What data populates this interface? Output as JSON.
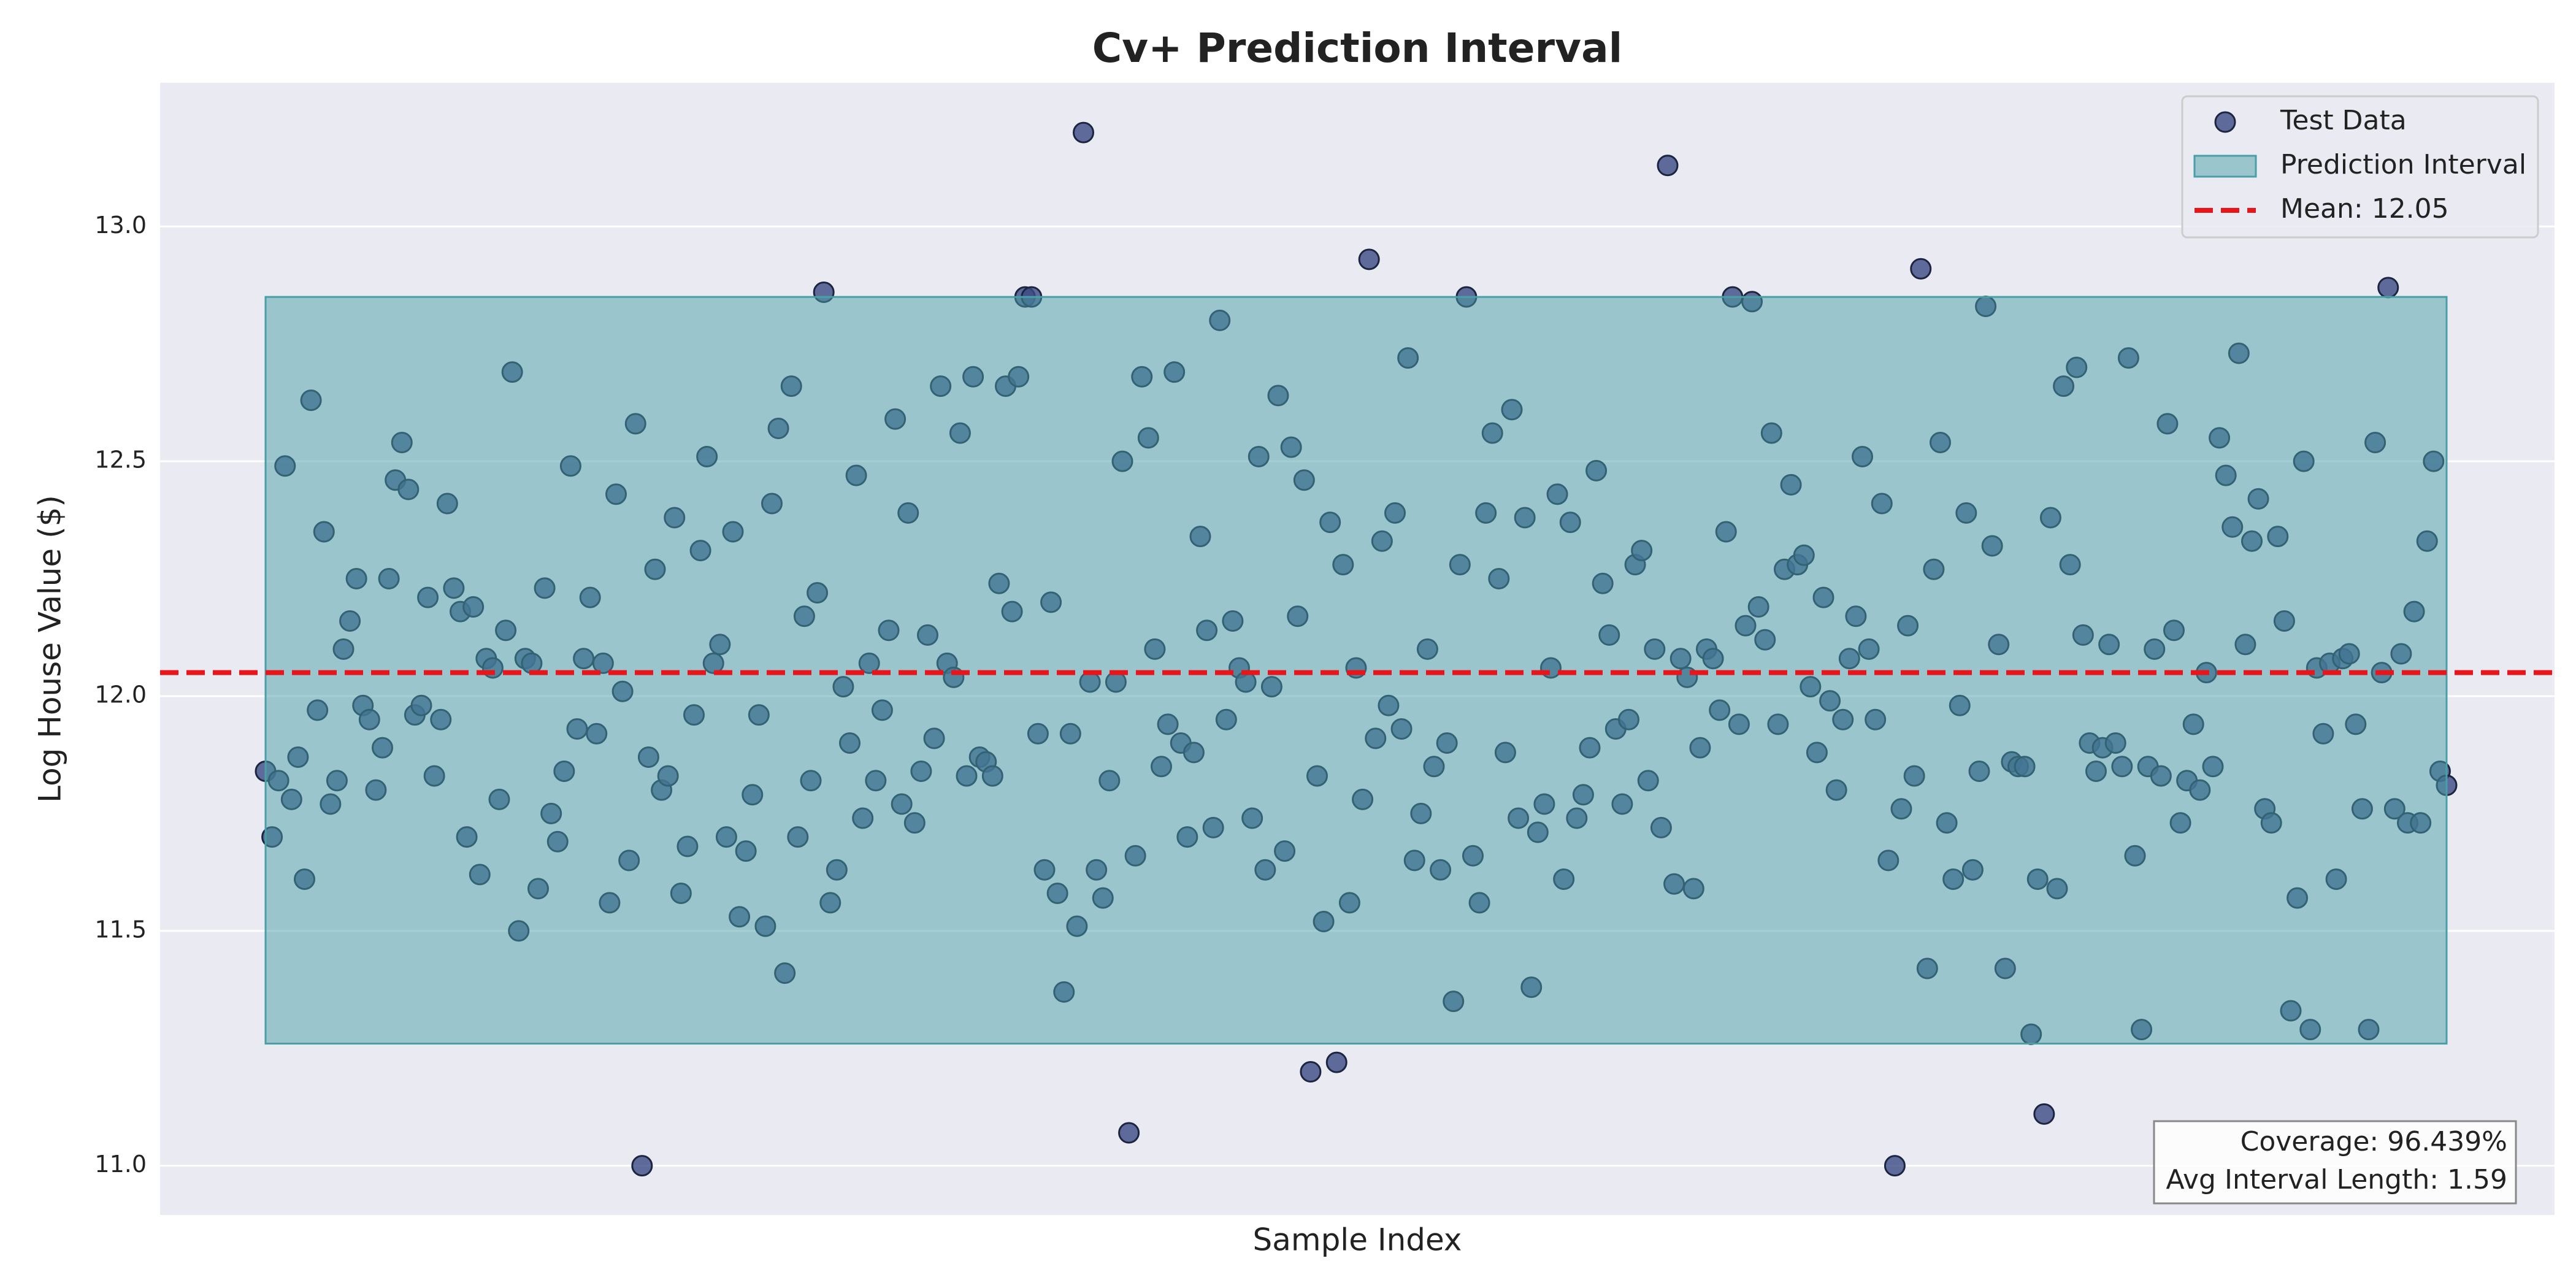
{
  "chart_data": {
    "type": "scatter",
    "title": "Cv+ Prediction Interval",
    "x_label": "Sample Index",
    "y_label": "Log House Value ($)",
    "ylim": [
      10.895,
      13.306
    ],
    "yticks": [
      {
        "value": 11,
        "label": "11.0"
      },
      {
        "value": 11.5,
        "label": "11.5"
      },
      {
        "value": 12,
        "label": "12.0"
      },
      {
        "value": 12.5,
        "label": "12.5"
      },
      {
        "value": 13,
        "label": "13.0"
      }
    ],
    "grid": true,
    "legend": "upper right",
    "series": [
      {
        "name": "Test Data",
        "color": "#3b4a82",
        "values": [
          11.84,
          11.7,
          11.82,
          12.49,
          11.78,
          11.87,
          11.61,
          12.63,
          11.97,
          12.35,
          11.77,
          11.82,
          12.1,
          12.16,
          12.25,
          11.98,
          11.95,
          11.8,
          11.89,
          12.25,
          12.46,
          12.54,
          12.44,
          11.96,
          11.98,
          12.21,
          11.83,
          11.95,
          12.41,
          12.23,
          12.18,
          11.7,
          12.19,
          11.62,
          12.08,
          12.06,
          11.78,
          12.14,
          12.69,
          11.5,
          12.08,
          12.07,
          11.59,
          12.23,
          11.75,
          11.69,
          11.84,
          12.49,
          11.93,
          12.08,
          12.21,
          11.92,
          12.07,
          11.56,
          12.43,
          12.01,
          11.65,
          12.58,
          11.0,
          11.87,
          12.27,
          11.8,
          11.83,
          12.38,
          11.58,
          11.68,
          11.96,
          12.31,
          12.51,
          12.07,
          12.11,
          11.7,
          12.35,
          11.53,
          11.67,
          11.79,
          11.96,
          11.51,
          12.41,
          12.57,
          11.41,
          12.66,
          11.7,
          12.17,
          11.82,
          12.22,
          12.86,
          11.56,
          11.63,
          12.02,
          11.9,
          12.47,
          11.74,
          12.07,
          11.82,
          11.97,
          12.14,
          12.59,
          11.77,
          12.39,
          11.73,
          11.84,
          12.13,
          11.91,
          12.66,
          12.07,
          12.04,
          12.56,
          11.83,
          12.68,
          11.87,
          11.86,
          11.83,
          12.24,
          12.66,
          12.18,
          12.68,
          12.85,
          12.85,
          11.92,
          11.63,
          12.2,
          11.58,
          11.37,
          11.92,
          11.51,
          13.2,
          12.03,
          11.63,
          11.57,
          11.82,
          12.03,
          12.5,
          11.07,
          11.66,
          12.68,
          12.55,
          12.1,
          11.85,
          11.94,
          12.69,
          11.9,
          11.7,
          11.88,
          12.34,
          12.14,
          11.72,
          12.8,
          11.95,
          12.16,
          12.06,
          12.03,
          11.74,
          12.51,
          11.63,
          12.02,
          12.64,
          11.67,
          12.53,
          12.17,
          12.46,
          11.2,
          11.83,
          11.52,
          12.37,
          11.22,
          12.28,
          11.56,
          12.06,
          11.78,
          12.93,
          11.91,
          12.33,
          11.98,
          12.39,
          11.93,
          12.72,
          11.65,
          11.75,
          12.1,
          11.85,
          11.63,
          11.9,
          11.35,
          12.28,
          12.85,
          11.66,
          11.56,
          12.39,
          12.56,
          12.25,
          11.88,
          12.61,
          11.74,
          12.38,
          11.38,
          11.71,
          11.77,
          12.06,
          12.43,
          11.61,
          12.37,
          11.74,
          11.79,
          11.89,
          12.48,
          12.24,
          12.13,
          11.93,
          11.77,
          11.95,
          12.28,
          12.31,
          11.82,
          12.1,
          11.72,
          13.13,
          11.6,
          12.08,
          12.04,
          11.59,
          11.89,
          12.1,
          12.08,
          11.97,
          12.35,
          12.85,
          11.94,
          12.15,
          12.84,
          12.19,
          12.12,
          12.56,
          11.94,
          12.27,
          12.45,
          12.28,
          12.3,
          12.02,
          11.88,
          12.21,
          11.99,
          11.8,
          11.95,
          12.08,
          12.17,
          12.51,
          12.1,
          11.95,
          12.41,
          11.65,
          11.0,
          11.76,
          12.15,
          11.83,
          12.91,
          11.42,
          12.27,
          12.54,
          11.73,
          11.61,
          11.98,
          12.39,
          11.63,
          11.84,
          12.83,
          12.32,
          12.11,
          11.42,
          11.86,
          11.85,
          11.85,
          11.28,
          11.61,
          11.11,
          12.38,
          11.59,
          12.66,
          12.28,
          12.7,
          12.13,
          11.9,
          11.84,
          11.89,
          12.11,
          11.9,
          11.85,
          12.72,
          11.66,
          11.29,
          11.85,
          12.1,
          11.83,
          12.58,
          12.14,
          11.73,
          11.82,
          11.94,
          11.8,
          12.05,
          11.85,
          12.55,
          12.47,
          12.36,
          12.73,
          12.11,
          12.33,
          12.42,
          11.76,
          11.73,
          12.34,
          12.16,
          11.33,
          11.57,
          12.5,
          11.29,
          12.06,
          11.92,
          12.07,
          11.61,
          12.08,
          12.09,
          11.94,
          11.76,
          11.29,
          12.54,
          12.05,
          12.87,
          11.76,
          12.09,
          11.73,
          12.18,
          11.73,
          12.33,
          12.5,
          11.84,
          11.81
        ]
      },
      {
        "name": "Prediction Interval",
        "color": "#4a9fa5",
        "lower": 11.26,
        "upper": 12.85
      },
      {
        "name": "Mean: 12.05",
        "color": "#e8161b",
        "value": 12.05
      }
    ],
    "annotation": [
      "Coverage: 96.439%",
      "Avg Interval Length: 1.59"
    ]
  }
}
